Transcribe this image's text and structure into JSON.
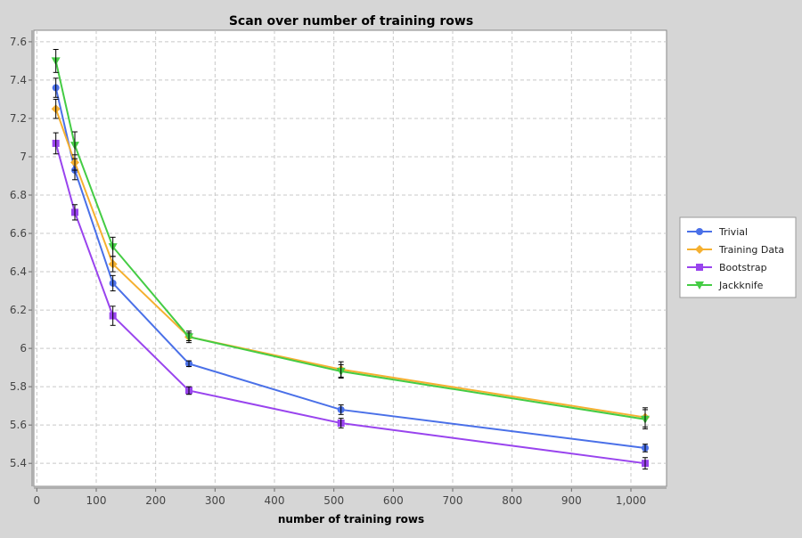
{
  "chart_data": {
    "type": "line",
    "title": "Scan over number of training rows",
    "xlabel": "number of training rows",
    "ylabel": "",
    "xlim": [
      -5,
      1060
    ],
    "ylim": [
      5.28,
      7.66
    ],
    "x_ticks": [
      0,
      100,
      200,
      300,
      400,
      500,
      600,
      700,
      800,
      900,
      1000
    ],
    "x_tick_labels": [
      "0",
      "100",
      "200",
      "300",
      "400",
      "500",
      "600",
      "700",
      "800",
      "900",
      "1,000"
    ],
    "y_ticks": [
      5.4,
      5.6,
      5.8,
      6.0,
      6.2,
      6.4,
      6.6,
      6.8,
      7.0,
      7.2,
      7.4,
      7.6
    ],
    "y_tick_labels": [
      "5.4",
      "5.6",
      "5.8",
      "6",
      "6.2",
      "6.4",
      "6.6",
      "6.8",
      "7",
      "7.2",
      "7.4",
      "7.6"
    ],
    "grid": true,
    "legend_position": "right",
    "x": [
      32,
      64,
      128,
      256,
      512,
      1024
    ],
    "series": [
      {
        "name": "Trivial",
        "color": "#4a70e8",
        "marker": "circle",
        "values": [
          7.36,
          6.93,
          6.34,
          5.92,
          5.68,
          5.48
        ],
        "errors": [
          0.05,
          0.05,
          0.04,
          0.015,
          0.025,
          0.02
        ]
      },
      {
        "name": "Training Data",
        "color": "#f5b030",
        "marker": "diamond",
        "values": [
          7.25,
          6.97,
          6.44,
          6.06,
          5.89,
          5.64
        ],
        "errors": [
          0.05,
          0.04,
          0.04,
          0.02,
          0.04,
          0.05
        ]
      },
      {
        "name": "Bootstrap",
        "color": "#9944ee",
        "marker": "square",
        "values": [
          7.07,
          6.71,
          6.17,
          5.78,
          5.61,
          5.4
        ],
        "errors": [
          0.055,
          0.04,
          0.05,
          0.02,
          0.025,
          0.03
        ]
      },
      {
        "name": "Jackknife",
        "color": "#44cc44",
        "marker": "triangle-down",
        "values": [
          7.5,
          7.06,
          6.53,
          6.06,
          5.88,
          5.63
        ],
        "errors": [
          0.06,
          0.07,
          0.05,
          0.03,
          0.035,
          0.05
        ]
      }
    ]
  }
}
